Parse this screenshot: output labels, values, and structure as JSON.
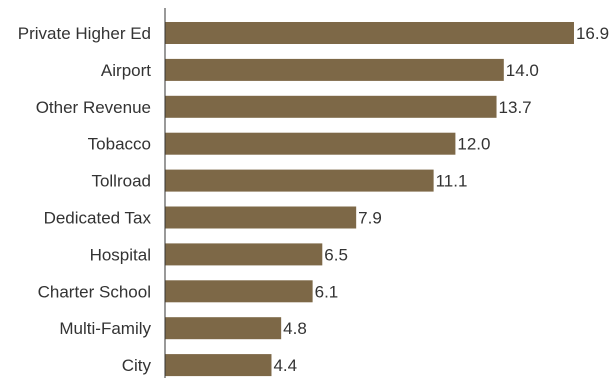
{
  "chart_data": {
    "type": "bar",
    "orientation": "horizontal",
    "categories": [
      "Private Higher Ed",
      "Airport",
      "Other Revenue",
      "Tobacco",
      "Tollroad",
      "Dedicated Tax",
      "Hospital",
      "Charter School",
      "Multi-Family",
      "City"
    ],
    "values": [
      16.9,
      14.0,
      13.7,
      12.0,
      11.1,
      7.9,
      6.5,
      6.1,
      4.8,
      4.4
    ],
    "value_labels": [
      "16.9",
      "14.0",
      "13.7",
      "12.0",
      "11.1",
      "7.9",
      "6.5",
      "6.1",
      "4.8",
      "4.4"
    ],
    "title": "",
    "xlabel": "",
    "ylabel": "",
    "xlim": [
      0,
      18
    ],
    "grid": false,
    "legend": "none",
    "colors": {
      "bar": "#7d6847",
      "axis": "#333333",
      "text": "#333333"
    }
  }
}
